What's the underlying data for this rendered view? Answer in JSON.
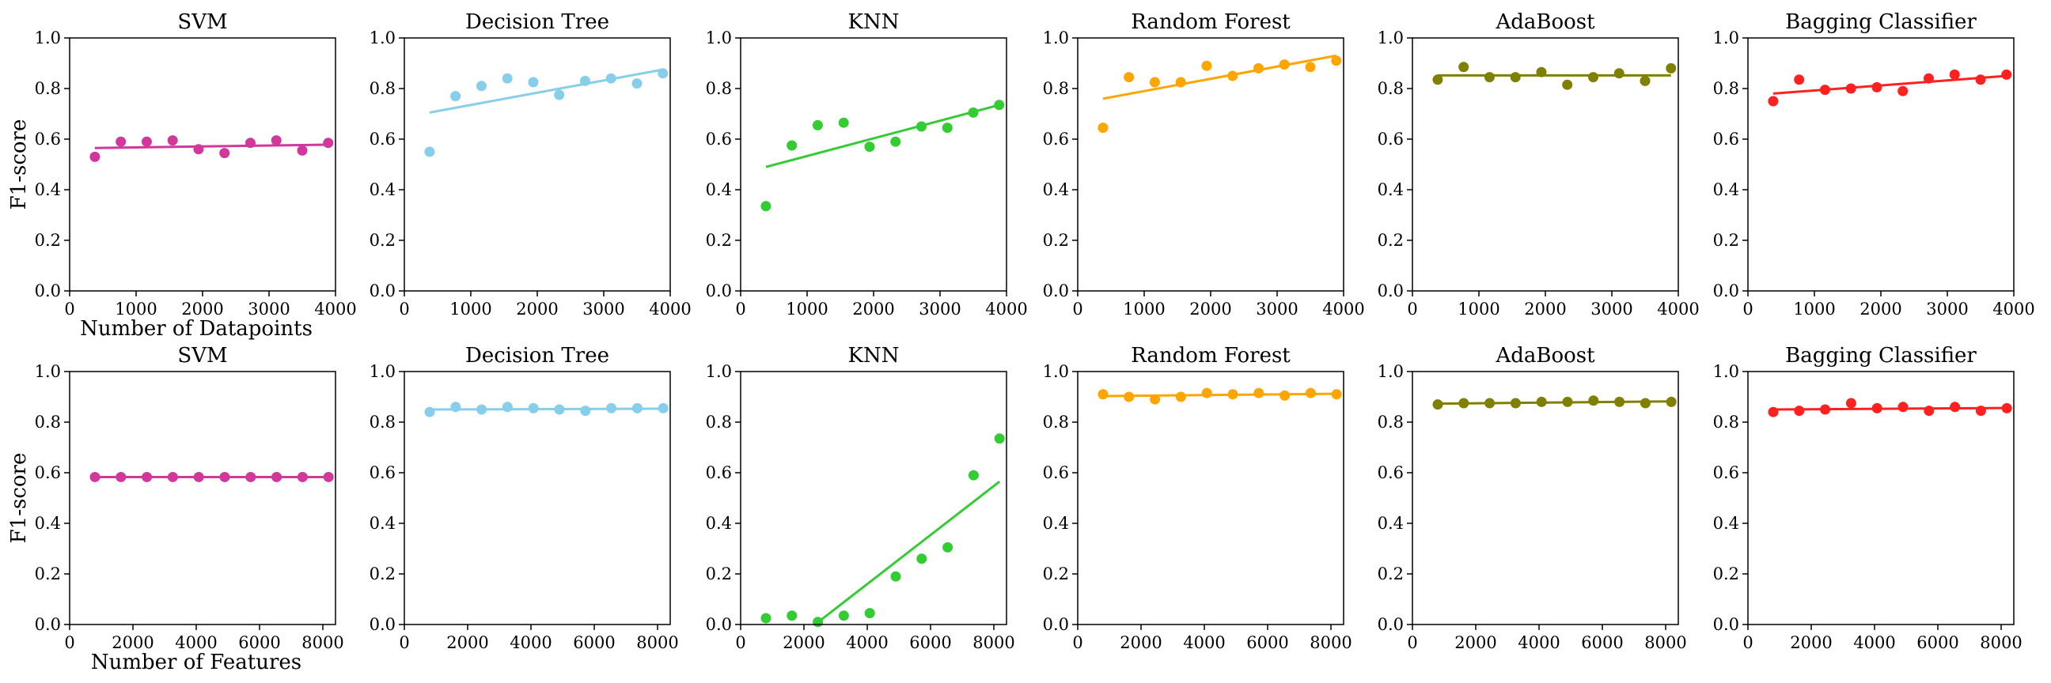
{
  "colors": {
    "SVM": "#d2379b",
    "Decision Tree": "#87ceeb",
    "KNN": "#33cc33",
    "Random Forest": "#ffa500",
    "AdaBoost": "#808000",
    "Bagging Classifier": "#ff2020"
  },
  "chart_data": [
    {
      "type": "scatter",
      "row": "datapoints",
      "title": "SVM",
      "xlabel": "Number of Datapoints",
      "ylabel": "F1-score",
      "xlim": [
        0,
        4000
      ],
      "ylim": [
        0.0,
        1.0
      ],
      "xticks": [
        0,
        1000,
        2000,
        3000,
        4000
      ],
      "yticks": [
        0.0,
        0.2,
        0.4,
        0.6,
        0.8,
        1.0
      ],
      "x": [
        380,
        770,
        1160,
        1550,
        1940,
        2330,
        2720,
        3110,
        3500,
        3890
      ],
      "y": [
        0.53,
        0.59,
        0.59,
        0.595,
        0.56,
        0.545,
        0.585,
        0.595,
        0.555,
        0.585
      ],
      "trend": [
        0.565,
        0.578
      ]
    },
    {
      "type": "scatter",
      "row": "datapoints",
      "title": "Decision Tree",
      "xlabel": "",
      "ylabel": "",
      "xlim": [
        0,
        4000
      ],
      "ylim": [
        0.0,
        1.0
      ],
      "xticks": [
        0,
        1000,
        2000,
        3000,
        4000
      ],
      "yticks": [
        0.0,
        0.2,
        0.4,
        0.6,
        0.8,
        1.0
      ],
      "x": [
        380,
        770,
        1160,
        1550,
        1940,
        2330,
        2720,
        3110,
        3500,
        3890
      ],
      "y": [
        0.55,
        0.77,
        0.81,
        0.84,
        0.825,
        0.775,
        0.83,
        0.84,
        0.82,
        0.86
      ],
      "trend": [
        0.705,
        0.875
      ]
    },
    {
      "type": "scatter",
      "row": "datapoints",
      "title": "KNN",
      "xlabel": "",
      "ylabel": "",
      "xlim": [
        0,
        4000
      ],
      "ylim": [
        0.0,
        1.0
      ],
      "xticks": [
        0,
        1000,
        2000,
        3000,
        4000
      ],
      "yticks": [
        0.0,
        0.2,
        0.4,
        0.6,
        0.8,
        1.0
      ],
      "x": [
        380,
        770,
        1160,
        1550,
        1940,
        2330,
        2720,
        3110,
        3500,
        3890
      ],
      "y": [
        0.335,
        0.575,
        0.655,
        0.665,
        0.57,
        0.59,
        0.65,
        0.645,
        0.705,
        0.735
      ],
      "trend": [
        0.49,
        0.735
      ]
    },
    {
      "type": "scatter",
      "row": "datapoints",
      "title": "Random Forest",
      "xlabel": "",
      "ylabel": "",
      "xlim": [
        0,
        4000
      ],
      "ylim": [
        0.0,
        1.0
      ],
      "xticks": [
        0,
        1000,
        2000,
        3000,
        4000
      ],
      "yticks": [
        0.0,
        0.2,
        0.4,
        0.6,
        0.8,
        1.0
      ],
      "x": [
        380,
        770,
        1160,
        1550,
        1940,
        2330,
        2720,
        3110,
        3500,
        3890
      ],
      "y": [
        0.645,
        0.845,
        0.825,
        0.825,
        0.89,
        0.85,
        0.88,
        0.895,
        0.885,
        0.91
      ],
      "trend": [
        0.76,
        0.93
      ]
    },
    {
      "type": "scatter",
      "row": "datapoints",
      "title": "AdaBoost",
      "xlabel": "",
      "ylabel": "",
      "xlim": [
        0,
        4000
      ],
      "ylim": [
        0.0,
        1.0
      ],
      "xticks": [
        0,
        1000,
        2000,
        3000,
        4000
      ],
      "yticks": [
        0.0,
        0.2,
        0.4,
        0.6,
        0.8,
        1.0
      ],
      "x": [
        380,
        770,
        1160,
        1550,
        1940,
        2330,
        2720,
        3110,
        3500,
        3890
      ],
      "y": [
        0.835,
        0.885,
        0.845,
        0.845,
        0.865,
        0.815,
        0.845,
        0.86,
        0.83,
        0.88
      ],
      "trend": [
        0.852,
        0.852
      ]
    },
    {
      "type": "scatter",
      "row": "datapoints",
      "title": "Bagging Classifier",
      "xlabel": "",
      "ylabel": "",
      "xlim": [
        0,
        4000
      ],
      "ylim": [
        0.0,
        1.0
      ],
      "xticks": [
        0,
        1000,
        2000,
        3000,
        4000
      ],
      "yticks": [
        0.0,
        0.2,
        0.4,
        0.6,
        0.8,
        1.0
      ],
      "x": [
        380,
        770,
        1160,
        1550,
        1940,
        2330,
        2720,
        3110,
        3500,
        3890
      ],
      "y": [
        0.75,
        0.835,
        0.795,
        0.8,
        0.805,
        0.79,
        0.84,
        0.855,
        0.835,
        0.855
      ],
      "trend": [
        0.78,
        0.85
      ]
    },
    {
      "type": "scatter",
      "row": "features",
      "title": "SVM",
      "xlabel": "Number of Features",
      "ylabel": "F1-score",
      "xlim": [
        0,
        8400
      ],
      "ylim": [
        0.0,
        1.0
      ],
      "xticks": [
        0,
        2000,
        4000,
        6000,
        8000
      ],
      "yticks": [
        0.0,
        0.2,
        0.4,
        0.6,
        0.8,
        1.0
      ],
      "x": [
        800,
        1620,
        2440,
        3260,
        4080,
        4900,
        5720,
        6540,
        7360,
        8180
      ],
      "y": [
        0.583,
        0.583,
        0.583,
        0.583,
        0.583,
        0.583,
        0.583,
        0.583,
        0.583,
        0.583
      ],
      "trend": [
        0.583,
        0.583
      ]
    },
    {
      "type": "scatter",
      "row": "features",
      "title": "Decision Tree",
      "xlabel": "",
      "ylabel": "",
      "xlim": [
        0,
        8400
      ],
      "ylim": [
        0.0,
        1.0
      ],
      "xticks": [
        0,
        2000,
        4000,
        6000,
        8000
      ],
      "yticks": [
        0.0,
        0.2,
        0.4,
        0.6,
        0.8,
        1.0
      ],
      "x": [
        800,
        1620,
        2440,
        3260,
        4080,
        4900,
        5720,
        6540,
        7360,
        8180
      ],
      "y": [
        0.84,
        0.86,
        0.85,
        0.86,
        0.855,
        0.85,
        0.845,
        0.855,
        0.855,
        0.855
      ],
      "trend": [
        0.85,
        0.853
      ]
    },
    {
      "type": "scatter",
      "row": "features",
      "title": "KNN",
      "xlabel": "",
      "ylabel": "",
      "xlim": [
        0,
        8400
      ],
      "ylim": [
        0.0,
        1.0
      ],
      "xticks": [
        0,
        2000,
        4000,
        6000,
        8000
      ],
      "yticks": [
        0.0,
        0.2,
        0.4,
        0.6,
        0.8,
        1.0
      ],
      "x": [
        800,
        1620,
        2440,
        3260,
        4080,
        4900,
        5720,
        6540,
        7360,
        8180
      ],
      "y": [
        0.025,
        0.035,
        0.01,
        0.035,
        0.045,
        0.19,
        0.26,
        0.305,
        0.59,
        0.735
      ],
      "trend_points": [
        [
          2350,
          0.0
        ],
        [
          8180,
          0.565
        ]
      ]
    },
    {
      "type": "scatter",
      "row": "features",
      "title": "Random Forest",
      "xlabel": "",
      "ylabel": "",
      "xlim": [
        0,
        8400
      ],
      "ylim": [
        0.0,
        1.0
      ],
      "xticks": [
        0,
        2000,
        4000,
        6000,
        8000
      ],
      "yticks": [
        0.0,
        0.2,
        0.4,
        0.6,
        0.8,
        1.0
      ],
      "x": [
        800,
        1620,
        2440,
        3260,
        4080,
        4900,
        5720,
        6540,
        7360,
        8180
      ],
      "y": [
        0.91,
        0.9,
        0.89,
        0.9,
        0.915,
        0.91,
        0.915,
        0.905,
        0.915,
        0.91
      ],
      "trend": [
        0.903,
        0.912
      ]
    },
    {
      "type": "scatter",
      "row": "features",
      "title": "AdaBoost",
      "xlabel": "",
      "ylabel": "",
      "xlim": [
        0,
        8400
      ],
      "ylim": [
        0.0,
        1.0
      ],
      "xticks": [
        0,
        2000,
        4000,
        6000,
        8000
      ],
      "yticks": [
        0.0,
        0.2,
        0.4,
        0.6,
        0.8,
        1.0
      ],
      "x": [
        800,
        1620,
        2440,
        3260,
        4080,
        4900,
        5720,
        6540,
        7360,
        8180
      ],
      "y": [
        0.87,
        0.875,
        0.875,
        0.875,
        0.88,
        0.88,
        0.885,
        0.88,
        0.875,
        0.88
      ],
      "trend": [
        0.873,
        0.882
      ]
    },
    {
      "type": "scatter",
      "row": "features",
      "title": "Bagging Classifier",
      "xlabel": "",
      "ylabel": "",
      "xlim": [
        0,
        8400
      ],
      "ylim": [
        0.0,
        1.0
      ],
      "xticks": [
        0,
        2000,
        4000,
        6000,
        8000
      ],
      "yticks": [
        0.0,
        0.2,
        0.4,
        0.6,
        0.8,
        1.0
      ],
      "x": [
        800,
        1620,
        2440,
        3260,
        4080,
        4900,
        5720,
        6540,
        7360,
        8180
      ],
      "y": [
        0.84,
        0.845,
        0.85,
        0.875,
        0.855,
        0.86,
        0.845,
        0.86,
        0.845,
        0.855
      ],
      "trend": [
        0.85,
        0.856
      ]
    }
  ]
}
